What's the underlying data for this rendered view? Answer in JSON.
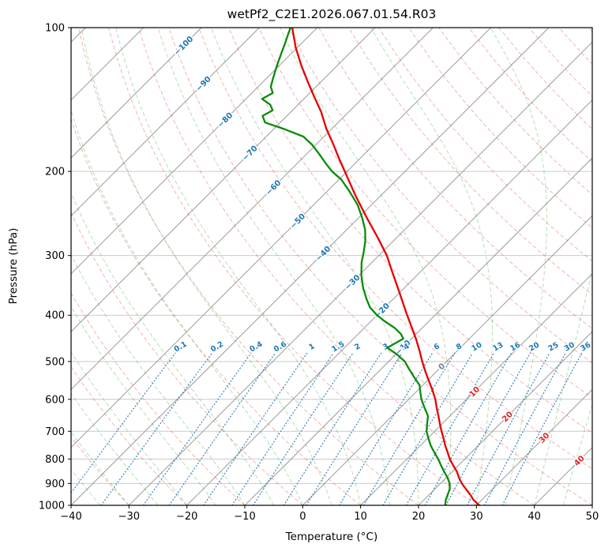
{
  "title": "wetPf2_C2E1.2026.067.01.54.R03",
  "axes": {
    "x_label": "Temperature (°C)",
    "y_label": "Pressure (hPa)",
    "x_ticks": [
      -40,
      -30,
      -20,
      -10,
      0,
      10,
      20,
      30,
      40,
      50
    ],
    "y_ticks": [
      100,
      200,
      300,
      400,
      500,
      600,
      700,
      800,
      900,
      1000
    ],
    "skew_deg_per_decade": 82.5
  },
  "colors": {
    "temperature_line": "#e60000",
    "dewpoint_line": "#0a8a0a",
    "isobar_grid": "#c9c9c9",
    "isotherm": "#9b9b9b",
    "dry_adiabat": "#d62728",
    "moist_adiabat": "#2ca02c",
    "mixing_ratio": "#1f77b4",
    "isotherm_label_negative": "#1f77b4",
    "isotherm_label_zero": "#808080",
    "isotherm_label_positive": "#d62728",
    "axis_text": "#000000"
  },
  "chart_data": {
    "type": "line",
    "variant": "skew-t-log-p",
    "title": "wetPf2_C2E1.2026.067.01.54.R03",
    "xlabel": "Temperature (°C)",
    "ylabel": "Pressure (hPa)",
    "xlim": [
      -40,
      50
    ],
    "pressure_lim_hPa": [
      1000,
      100
    ],
    "grid": true,
    "series": [
      {
        "name": "temperature",
        "color": "#e60000",
        "pressure_hPa": [
          1000,
          975,
          950,
          925,
          900,
          875,
          850,
          825,
          800,
          775,
          750,
          725,
          700,
          675,
          650,
          625,
          600,
          575,
          550,
          525,
          500,
          475,
          450,
          425,
          400,
          375,
          350,
          325,
          300,
          275,
          250,
          225,
          200,
          188,
          175,
          163,
          150,
          140,
          130,
          120,
          110,
          100
        ],
        "temperature_C": [
          30.5,
          28.6,
          27.1,
          25.4,
          23.7,
          22.2,
          20.8,
          19.1,
          17.4,
          15.9,
          14.3,
          12.8,
          11.2,
          9.6,
          8.0,
          6.3,
          4.6,
          2.6,
          0.4,
          -1.9,
          -4.2,
          -6.5,
          -9.0,
          -11.8,
          -14.8,
          -17.9,
          -21.2,
          -24.8,
          -28.6,
          -33.3,
          -38.6,
          -44.3,
          -50.4,
          -53.6,
          -57.2,
          -60.9,
          -64.8,
          -68.4,
          -72.2,
          -76.2,
          -80.3,
          -84.3
        ]
      },
      {
        "name": "dewpoint",
        "color": "#0a8a0a",
        "pressure_hPa": [
          1000,
          975,
          950,
          925,
          900,
          875,
          850,
          825,
          800,
          775,
          750,
          725,
          700,
          675,
          650,
          625,
          600,
          580,
          560,
          540,
          520,
          500,
          483,
          468,
          458,
          448,
          438,
          425,
          412,
          400,
          385,
          370,
          350,
          330,
          310,
          295,
          280,
          265,
          250,
          235,
          220,
          208,
          200,
          192,
          184,
          176,
          169,
          163,
          158,
          153,
          149,
          145,
          141,
          137,
          133,
          128,
          123,
          118,
          113,
          108,
          104,
          100
        ],
        "temperature_C": [
          24.6,
          23.8,
          23.2,
          22.6,
          21.6,
          20.2,
          18.6,
          17.0,
          15.4,
          13.6,
          11.8,
          10.2,
          8.6,
          7.4,
          6.2,
          4.2,
          2.2,
          0.8,
          -0.6,
          -2.8,
          -5.0,
          -7.2,
          -9.8,
          -12.6,
          -12.0,
          -11.4,
          -12.6,
          -14.8,
          -17.6,
          -20.0,
          -22.6,
          -24.6,
          -27.2,
          -29.6,
          -31.8,
          -33.2,
          -34.8,
          -36.8,
          -39.4,
          -42.4,
          -46.2,
          -49.6,
          -52.6,
          -55.2,
          -57.8,
          -60.6,
          -63.6,
          -68.2,
          -72.6,
          -74.2,
          -73.4,
          -74.8,
          -77.2,
          -76.4,
          -77.8,
          -78.8,
          -79.8,
          -80.8,
          -81.8,
          -82.8,
          -83.7,
          -84.6
        ]
      }
    ],
    "isotherms_C": {
      "min": -120,
      "max": 50,
      "step": 10
    },
    "isotherm_labels": [
      {
        "value": -100,
        "p": 109
      },
      {
        "value": -90,
        "p": 131
      },
      {
        "value": -80,
        "p": 156
      },
      {
        "value": -70,
        "p": 183
      },
      {
        "value": -60,
        "p": 216
      },
      {
        "value": -50,
        "p": 254
      },
      {
        "value": -40,
        "p": 297
      },
      {
        "value": -30,
        "p": 341
      },
      {
        "value": -20,
        "p": 391
      },
      {
        "value": -10,
        "p": 467
      },
      {
        "value": 0,
        "p": 512
      },
      {
        "value": 10,
        "p": 578
      },
      {
        "value": 20,
        "p": 652
      },
      {
        "value": 30,
        "p": 722
      },
      {
        "value": 40,
        "p": 806
      }
    ],
    "dry_adiabats_C": {
      "min": -40,
      "max": 200,
      "step": 10
    },
    "moist_adiabats_C": {
      "min": -40,
      "max": 50,
      "step": 5
    },
    "mixing_ratio_g_kg": [
      0.1,
      0.2,
      0.4,
      0.6,
      1,
      1.5,
      2,
      3,
      4,
      6,
      8,
      10,
      13,
      16,
      20,
      25,
      30,
      36
    ],
    "mixing_ratio_label_pressure_hPa": 465,
    "mixing_ratio_line_top_hPa": 480
  }
}
